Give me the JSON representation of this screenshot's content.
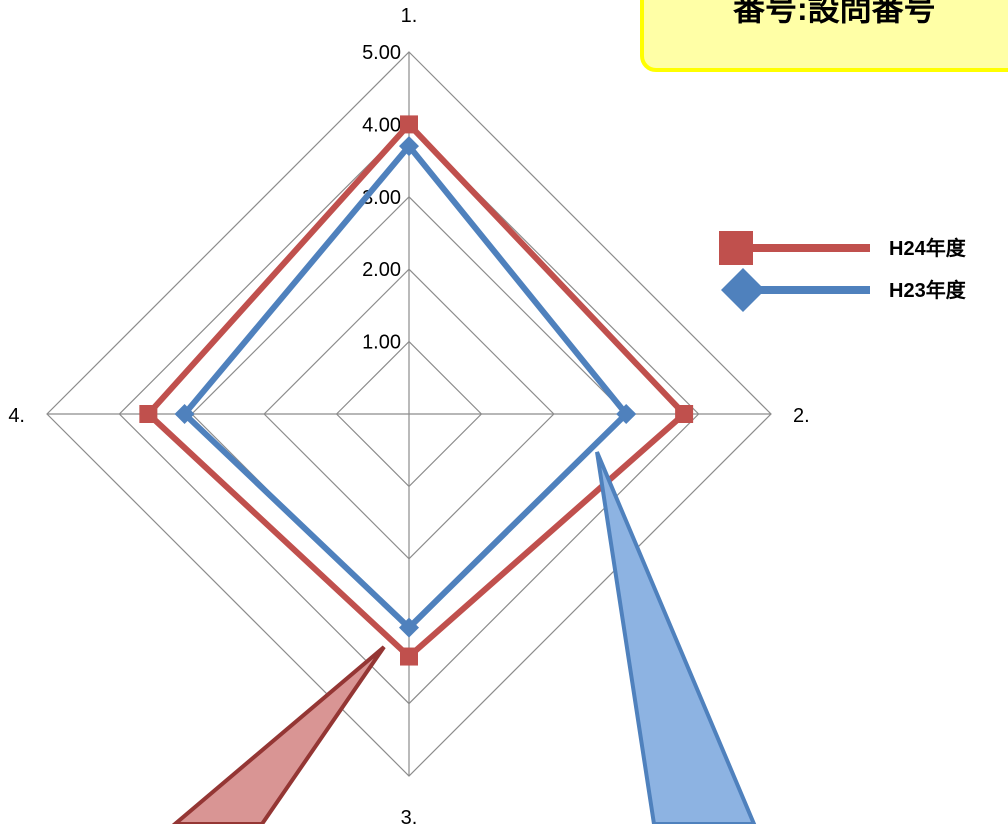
{
  "callout": {
    "text": "番号:設問番号"
  },
  "chart_data": {
    "type": "radar",
    "categories": [
      "1.",
      "2.",
      "3.",
      "4."
    ],
    "ticks": [
      "1.00",
      "2.00",
      "3.00",
      "4.00",
      "5.00"
    ],
    "range": [
      1,
      5
    ],
    "series": [
      {
        "name": "H24年度",
        "values": [
          4.0,
          3.8,
          3.35,
          3.6
        ],
        "color": "#c0504d",
        "marker": "square"
      },
      {
        "name": "H23年度",
        "values": [
          3.7,
          3.0,
          2.95,
          3.1
        ],
        "color": "#4f81bd",
        "marker": "diamond"
      }
    ],
    "gridline_color": "#8c8c8c",
    "legend_position": "right"
  }
}
